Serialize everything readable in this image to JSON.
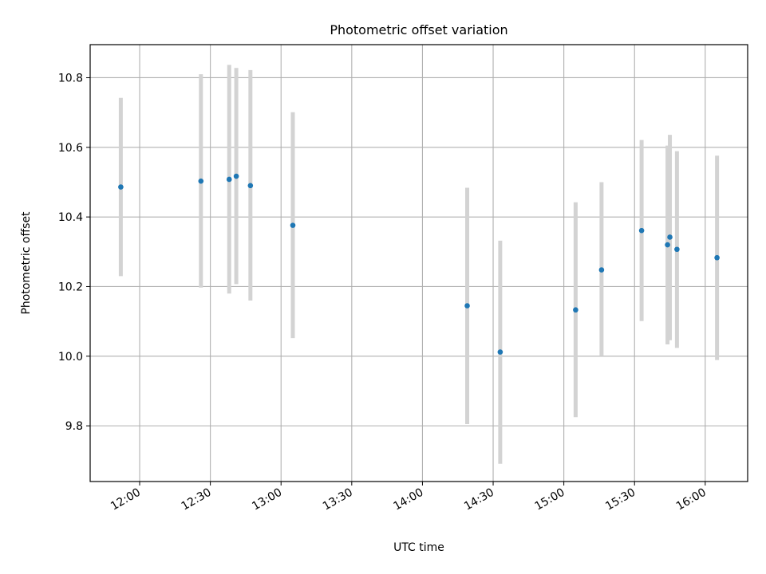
{
  "chart_data": {
    "type": "scatter",
    "title": "Photometric offset variation",
    "xlabel": "UTC time",
    "ylabel": "Photometric offset",
    "x_type": "time",
    "xlim": [
      "11:39",
      "16:18"
    ],
    "ylim": [
      9.64,
      10.895
    ],
    "x_ticks": [
      "12:00",
      "12:30",
      "13:00",
      "13:30",
      "14:00",
      "14:30",
      "15:00",
      "15:30",
      "16:00"
    ],
    "y_ticks": [
      9.8,
      10.0,
      10.2,
      10.4,
      10.6,
      10.8
    ],
    "y_tick_labels": [
      "9.8",
      "10.0",
      "10.2",
      "10.4",
      "10.6",
      "10.8"
    ],
    "grid": true,
    "colors": {
      "points": "#1f77b4",
      "error_bars": "#d3d3d3",
      "grid": "#b0b0b0"
    },
    "points": [
      {
        "x": "11:52",
        "y": 10.486,
        "yerr_low": 10.23,
        "yerr_high": 10.742
      },
      {
        "x": "12:26",
        "y": 10.503,
        "yerr_low": 10.197,
        "yerr_high": 10.81
      },
      {
        "x": "12:38",
        "y": 10.508,
        "yerr_low": 10.18,
        "yerr_high": 10.837
      },
      {
        "x": "12:41",
        "y": 10.517,
        "yerr_low": 10.207,
        "yerr_high": 10.828
      },
      {
        "x": "12:47",
        "y": 10.49,
        "yerr_low": 10.16,
        "yerr_high": 10.822
      },
      {
        "x": "13:05",
        "y": 10.376,
        "yerr_low": 10.052,
        "yerr_high": 10.701
      },
      {
        "x": "14:19",
        "y": 10.145,
        "yerr_low": 9.805,
        "yerr_high": 10.484
      },
      {
        "x": "14:33",
        "y": 10.012,
        "yerr_low": 9.691,
        "yerr_high": 10.332
      },
      {
        "x": "15:05",
        "y": 10.133,
        "yerr_low": 9.825,
        "yerr_high": 10.442
      },
      {
        "x": "15:16",
        "y": 10.248,
        "yerr_low": 10.002,
        "yerr_high": 10.5
      },
      {
        "x": "15:33",
        "y": 10.361,
        "yerr_low": 10.101,
        "yerr_high": 10.621
      },
      {
        "x": "15:44",
        "y": 10.32,
        "yerr_low": 10.034,
        "yerr_high": 10.605
      },
      {
        "x": "15:45",
        "y": 10.342,
        "yerr_low": 10.046,
        "yerr_high": 10.636
      },
      {
        "x": "15:48",
        "y": 10.307,
        "yerr_low": 10.024,
        "yerr_high": 10.589
      },
      {
        "x": "16:05",
        "y": 10.283,
        "yerr_low": 9.989,
        "yerr_high": 10.576
      }
    ]
  }
}
